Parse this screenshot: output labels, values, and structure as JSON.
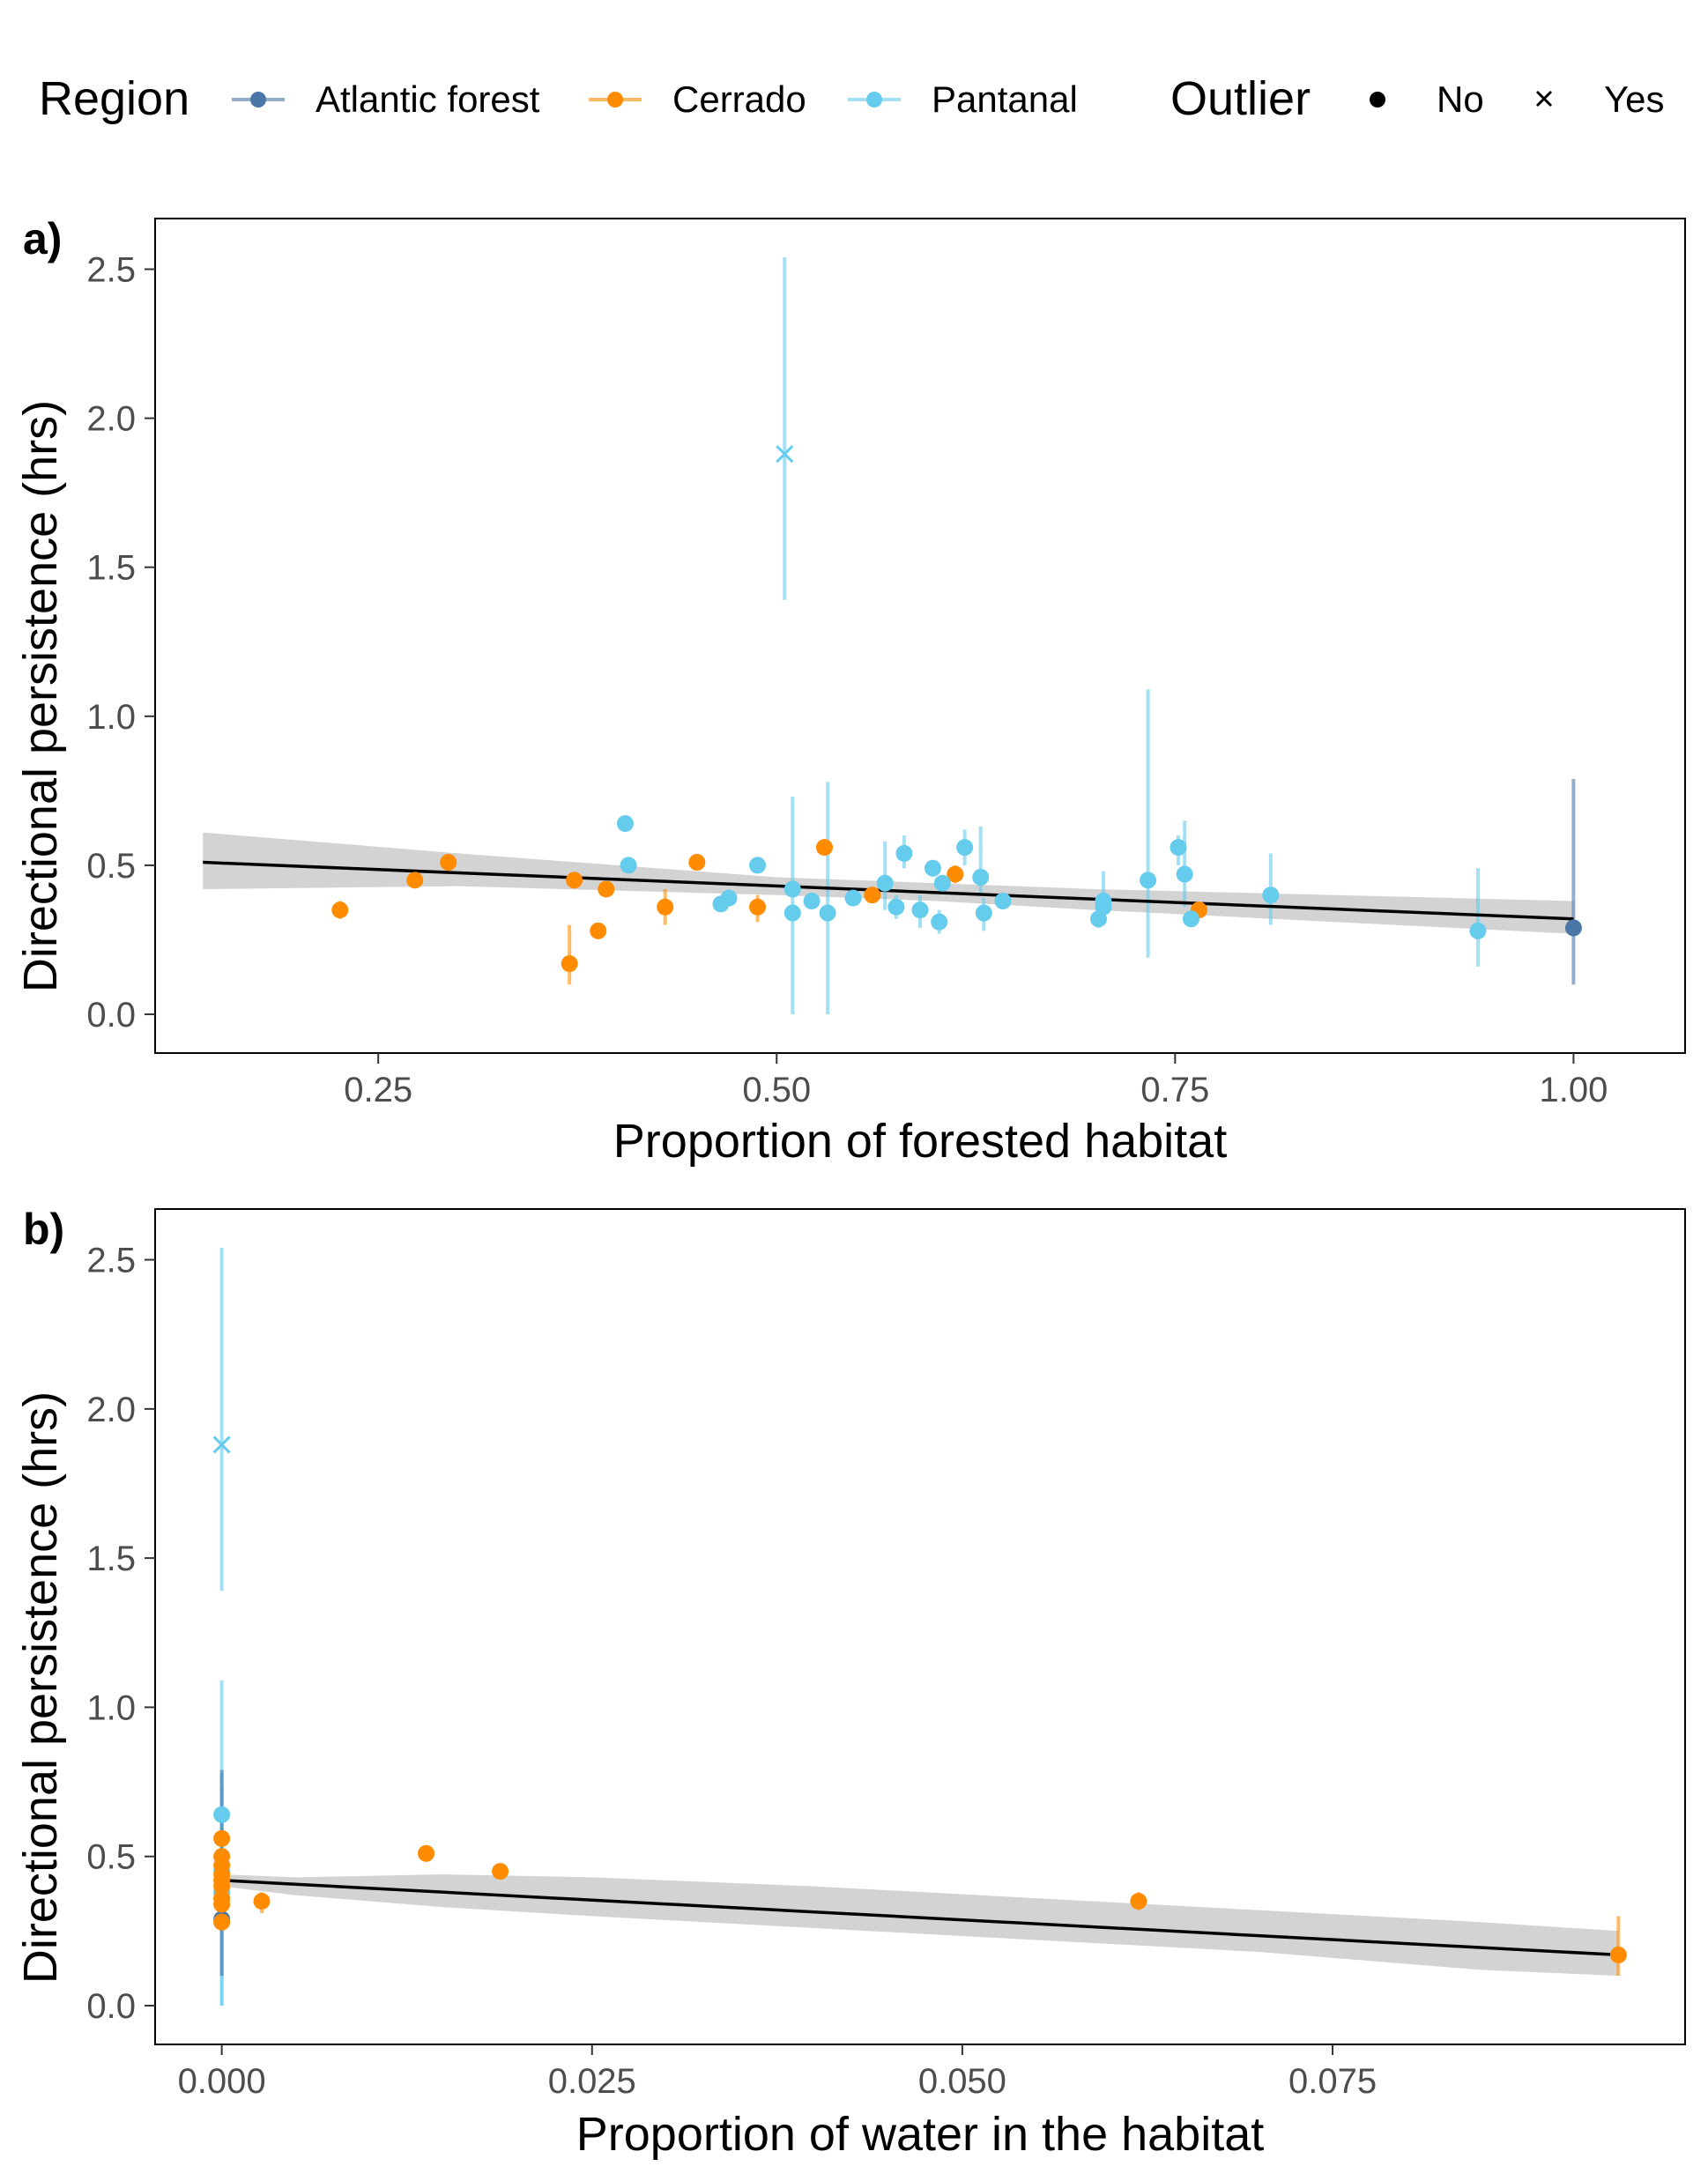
{
  "legend": {
    "region_title": "Region",
    "regions": [
      {
        "name": "Atlantic forest",
        "color": "#4a77a8"
      },
      {
        "name": "Cerrado",
        "color": "#ff8c00"
      },
      {
        "name": "Pantanal",
        "color": "#66ccee"
      }
    ],
    "outlier_title": "Outlier",
    "outliers": [
      {
        "name": "No",
        "marker": "dot"
      },
      {
        "name": "Yes",
        "marker": "cross"
      }
    ]
  },
  "chart_data": [
    {
      "panel": "a)",
      "type": "scatter",
      "xlabel": "Proportion of forested habitat",
      "ylabel": "Directional persistence (hrs)",
      "xlim": [
        0.11,
        1.07
      ],
      "ylim": [
        -0.13,
        2.67
      ],
      "xticks": [
        0.25,
        0.5,
        0.75,
        1.0
      ],
      "xtick_labels": [
        "0.25",
        "0.50",
        "0.75",
        "1.00"
      ],
      "yticks": [
        0.0,
        0.5,
        1.0,
        1.5,
        2.0,
        2.5
      ],
      "ytick_labels": [
        "0.0",
        "0.5",
        "1.0",
        "1.5",
        "2.0",
        "2.5"
      ],
      "grid": false,
      "legend_position": "top",
      "fit": {
        "x": [
          0.14,
          1.0
        ],
        "y": [
          0.51,
          0.32
        ],
        "band_x": [
          0.14,
          0.3,
          0.5,
          0.6,
          0.7,
          0.85,
          1.0
        ],
        "band_lower": [
          0.42,
          0.43,
          0.4,
          0.38,
          0.35,
          0.31,
          0.27
        ],
        "band_upper": [
          0.61,
          0.54,
          0.46,
          0.44,
          0.42,
          0.4,
          0.38
        ],
        "color": "#000000",
        "band_color": "#d3d3d3"
      },
      "points": [
        {
          "x": 0.226,
          "y": 0.35,
          "lo": 0.32,
          "hi": 0.38,
          "region": "Cerrado",
          "outlier": "No"
        },
        {
          "x": 0.273,
          "y": 0.45,
          "lo": 0.43,
          "hi": 0.47,
          "region": "Cerrado",
          "outlier": "No"
        },
        {
          "x": 0.294,
          "y": 0.51,
          "lo": 0.49,
          "hi": 0.53,
          "region": "Cerrado",
          "outlier": "No"
        },
        {
          "x": 0.37,
          "y": 0.17,
          "lo": 0.1,
          "hi": 0.3,
          "region": "Cerrado",
          "outlier": "No"
        },
        {
          "x": 0.373,
          "y": 0.45,
          "lo": 0.43,
          "hi": 0.47,
          "region": "Cerrado",
          "outlier": "No"
        },
        {
          "x": 0.388,
          "y": 0.28,
          "lo": 0.26,
          "hi": 0.3,
          "region": "Cerrado",
          "outlier": "No"
        },
        {
          "x": 0.393,
          "y": 0.42,
          "lo": 0.4,
          "hi": 0.44,
          "region": "Cerrado",
          "outlier": "No"
        },
        {
          "x": 0.43,
          "y": 0.36,
          "lo": 0.3,
          "hi": 0.42,
          "region": "Cerrado",
          "outlier": "No"
        },
        {
          "x": 0.45,
          "y": 0.51,
          "lo": 0.49,
          "hi": 0.53,
          "region": "Cerrado",
          "outlier": "No"
        },
        {
          "x": 0.488,
          "y": 0.36,
          "lo": 0.31,
          "hi": 0.4,
          "region": "Cerrado",
          "outlier": "No"
        },
        {
          "x": 0.53,
          "y": 0.56,
          "lo": 0.54,
          "hi": 0.58,
          "region": "Cerrado",
          "outlier": "No"
        },
        {
          "x": 0.56,
          "y": 0.4,
          "lo": 0.38,
          "hi": 0.42,
          "region": "Cerrado",
          "outlier": "No"
        },
        {
          "x": 0.612,
          "y": 0.47,
          "lo": 0.44,
          "hi": 0.5,
          "region": "Cerrado",
          "outlier": "No"
        },
        {
          "x": 0.765,
          "y": 0.35,
          "lo": 0.33,
          "hi": 0.37,
          "region": "Cerrado",
          "outlier": "No"
        },
        {
          "x": 0.405,
          "y": 0.64,
          "lo": 0.62,
          "hi": 0.66,
          "region": "Pantanal",
          "outlier": "No"
        },
        {
          "x": 0.407,
          "y": 0.5,
          "lo": 0.48,
          "hi": 0.52,
          "region": "Pantanal",
          "outlier": "No"
        },
        {
          "x": 0.465,
          "y": 0.37,
          "lo": 0.35,
          "hi": 0.39,
          "region": "Pantanal",
          "outlier": "No"
        },
        {
          "x": 0.47,
          "y": 0.39,
          "lo": 0.37,
          "hi": 0.41,
          "region": "Pantanal",
          "outlier": "No"
        },
        {
          "x": 0.488,
          "y": 0.5,
          "lo": 0.48,
          "hi": 0.52,
          "region": "Pantanal",
          "outlier": "No"
        },
        {
          "x": 0.505,
          "y": 1.88,
          "lo": 1.39,
          "hi": 2.54,
          "region": "Pantanal",
          "outlier": "Yes"
        },
        {
          "x": 0.51,
          "y": 0.42,
          "lo": 0.0,
          "hi": 0.73,
          "region": "Pantanal",
          "outlier": "No"
        },
        {
          "x": 0.51,
          "y": 0.34,
          "lo": 0.32,
          "hi": 0.36,
          "region": "Pantanal",
          "outlier": "No"
        },
        {
          "x": 0.522,
          "y": 0.38,
          "lo": 0.36,
          "hi": 0.4,
          "region": "Pantanal",
          "outlier": "No"
        },
        {
          "x": 0.532,
          "y": 0.34,
          "lo": 0.0,
          "hi": 0.78,
          "region": "Pantanal",
          "outlier": "No"
        },
        {
          "x": 0.548,
          "y": 0.39,
          "lo": 0.37,
          "hi": 0.41,
          "region": "Pantanal",
          "outlier": "No"
        },
        {
          "x": 0.568,
          "y": 0.44,
          "lo": 0.35,
          "hi": 0.58,
          "region": "Pantanal",
          "outlier": "No"
        },
        {
          "x": 0.575,
          "y": 0.36,
          "lo": 0.32,
          "hi": 0.4,
          "region": "Pantanal",
          "outlier": "No"
        },
        {
          "x": 0.58,
          "y": 0.54,
          "lo": 0.49,
          "hi": 0.6,
          "region": "Pantanal",
          "outlier": "No"
        },
        {
          "x": 0.59,
          "y": 0.35,
          "lo": 0.29,
          "hi": 0.4,
          "region": "Pantanal",
          "outlier": "No"
        },
        {
          "x": 0.598,
          "y": 0.49,
          "lo": 0.47,
          "hi": 0.51,
          "region": "Pantanal",
          "outlier": "No"
        },
        {
          "x": 0.602,
          "y": 0.31,
          "lo": 0.27,
          "hi": 0.35,
          "region": "Pantanal",
          "outlier": "No"
        },
        {
          "x": 0.604,
          "y": 0.44,
          "lo": 0.42,
          "hi": 0.46,
          "region": "Pantanal",
          "outlier": "No"
        },
        {
          "x": 0.618,
          "y": 0.56,
          "lo": 0.5,
          "hi": 0.62,
          "region": "Pantanal",
          "outlier": "No"
        },
        {
          "x": 0.628,
          "y": 0.46,
          "lo": 0.4,
          "hi": 0.63,
          "region": "Pantanal",
          "outlier": "No"
        },
        {
          "x": 0.63,
          "y": 0.34,
          "lo": 0.28,
          "hi": 0.39,
          "region": "Pantanal",
          "outlier": "No"
        },
        {
          "x": 0.642,
          "y": 0.38,
          "lo": 0.36,
          "hi": 0.4,
          "region": "Pantanal",
          "outlier": "No"
        },
        {
          "x": 0.702,
          "y": 0.32,
          "lo": 0.29,
          "hi": 0.35,
          "region": "Pantanal",
          "outlier": "No"
        },
        {
          "x": 0.705,
          "y": 0.38,
          "lo": 0.3,
          "hi": 0.48,
          "region": "Pantanal",
          "outlier": "No"
        },
        {
          "x": 0.705,
          "y": 0.36,
          "lo": 0.33,
          "hi": 0.39,
          "region": "Pantanal",
          "outlier": "No"
        },
        {
          "x": 0.733,
          "y": 0.45,
          "lo": 0.19,
          "hi": 1.09,
          "region": "Pantanal",
          "outlier": "No"
        },
        {
          "x": 0.752,
          "y": 0.56,
          "lo": 0.5,
          "hi": 0.6,
          "region": "Pantanal",
          "outlier": "No"
        },
        {
          "x": 0.756,
          "y": 0.47,
          "lo": 0.36,
          "hi": 0.65,
          "region": "Pantanal",
          "outlier": "No"
        },
        {
          "x": 0.76,
          "y": 0.32,
          "lo": 0.3,
          "hi": 0.34,
          "region": "Pantanal",
          "outlier": "No"
        },
        {
          "x": 0.81,
          "y": 0.4,
          "lo": 0.3,
          "hi": 0.54,
          "region": "Pantanal",
          "outlier": "No"
        },
        {
          "x": 0.94,
          "y": 0.28,
          "lo": 0.16,
          "hi": 0.49,
          "region": "Pantanal",
          "outlier": "No"
        },
        {
          "x": 1.0,
          "y": 0.29,
          "lo": 0.1,
          "hi": 0.79,
          "region": "Atlantic forest",
          "outlier": "No"
        }
      ]
    },
    {
      "panel": "b)",
      "type": "scatter",
      "xlabel": "Proportion of water in the habitat",
      "ylabel": "Directional persistence (hrs)",
      "xlim": [
        -0.0045,
        0.0988
      ],
      "ylim": [
        -0.13,
        2.67
      ],
      "xticks": [
        0.0,
        0.025,
        0.05,
        0.075
      ],
      "xtick_labels": [
        "0.000",
        "0.025",
        "0.050",
        "0.075"
      ],
      "yticks": [
        0.0,
        0.5,
        1.0,
        1.5,
        2.0,
        2.5
      ],
      "ytick_labels": [
        "0.0",
        "0.5",
        "1.0",
        "1.5",
        "2.0",
        "2.5"
      ],
      "grid": false,
      "fit": {
        "x": [
          0.0,
          0.0943
        ],
        "y": [
          0.42,
          0.17
        ],
        "band_x": [
          0.0,
          0.005,
          0.015,
          0.025,
          0.04,
          0.055,
          0.07,
          0.085,
          0.0943
        ],
        "band_lower": [
          0.4,
          0.37,
          0.33,
          0.3,
          0.26,
          0.22,
          0.18,
          0.12,
          0.1
        ],
        "band_upper": [
          0.44,
          0.43,
          0.44,
          0.43,
          0.4,
          0.36,
          0.32,
          0.28,
          0.25
        ],
        "color": "#000000",
        "band_color": "#d3d3d3"
      },
      "points": [
        {
          "x": 0.0,
          "y": 0.64,
          "lo": 0.1,
          "hi": 1.09,
          "region": "Pantanal",
          "outlier": "No"
        },
        {
          "x": 0.0,
          "y": 1.88,
          "lo": 1.39,
          "hi": 2.54,
          "region": "Pantanal",
          "outlier": "Yes"
        },
        {
          "x": 0.0,
          "y": 0.45,
          "lo": 0.0,
          "hi": 0.78,
          "region": "Pantanal",
          "outlier": "No"
        },
        {
          "x": 0.0,
          "y": 0.38,
          "lo": 0.0,
          "hi": 0.73,
          "region": "Pantanal",
          "outlier": "No"
        },
        {
          "x": 0.0,
          "y": 0.29,
          "lo": 0.1,
          "hi": 0.79,
          "region": "Atlantic forest",
          "outlier": "No"
        },
        {
          "x": 0.0,
          "y": 0.56,
          "lo": 0.54,
          "hi": 0.58,
          "region": "Cerrado",
          "outlier": "No"
        },
        {
          "x": 0.0,
          "y": 0.5,
          "lo": 0.48,
          "hi": 0.52,
          "region": "Cerrado",
          "outlier": "No"
        },
        {
          "x": 0.0,
          "y": 0.47,
          "lo": 0.44,
          "hi": 0.5,
          "region": "Cerrado",
          "outlier": "No"
        },
        {
          "x": 0.0,
          "y": 0.44,
          "lo": 0.42,
          "hi": 0.46,
          "region": "Cerrado",
          "outlier": "No"
        },
        {
          "x": 0.0,
          "y": 0.42,
          "lo": 0.4,
          "hi": 0.44,
          "region": "Cerrado",
          "outlier": "No"
        },
        {
          "x": 0.0,
          "y": 0.4,
          "lo": 0.38,
          "hi": 0.42,
          "region": "Cerrado",
          "outlier": "No"
        },
        {
          "x": 0.0,
          "y": 0.36,
          "lo": 0.3,
          "hi": 0.42,
          "region": "Cerrado",
          "outlier": "No"
        },
        {
          "x": 0.0,
          "y": 0.34,
          "lo": 0.32,
          "hi": 0.36,
          "region": "Cerrado",
          "outlier": "No"
        },
        {
          "x": 0.0,
          "y": 0.28,
          "lo": 0.26,
          "hi": 0.3,
          "region": "Cerrado",
          "outlier": "No"
        },
        {
          "x": 0.0027,
          "y": 0.35,
          "lo": 0.31,
          "hi": 0.38,
          "region": "Cerrado",
          "outlier": "No"
        },
        {
          "x": 0.0138,
          "y": 0.51,
          "lo": 0.49,
          "hi": 0.53,
          "region": "Cerrado",
          "outlier": "No"
        },
        {
          "x": 0.0188,
          "y": 0.45,
          "lo": 0.43,
          "hi": 0.47,
          "region": "Cerrado",
          "outlier": "No"
        },
        {
          "x": 0.0619,
          "y": 0.35,
          "lo": 0.32,
          "hi": 0.38,
          "region": "Cerrado",
          "outlier": "No"
        },
        {
          "x": 0.0943,
          "y": 0.17,
          "lo": 0.1,
          "hi": 0.3,
          "region": "Cerrado",
          "outlier": "No"
        }
      ]
    }
  ]
}
